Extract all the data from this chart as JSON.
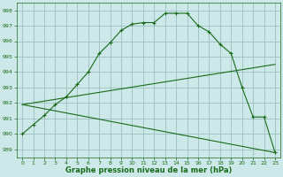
{
  "title": "Graphe pression niveau de la mer (hPa)",
  "bg_color": "#cce8e8",
  "grid_color": "#9bbfbf",
  "line_color": "#1a6b1a",
  "x_ticks": [
    0,
    1,
    2,
    3,
    4,
    5,
    6,
    7,
    8,
    9,
    10,
    11,
    12,
    13,
    14,
    15,
    16,
    17,
    18,
    19,
    20,
    21,
    22,
    23
  ],
  "ylim": [
    988.5,
    998.5
  ],
  "yticks": [
    989,
    990,
    991,
    992,
    993,
    994,
    995,
    996,
    997,
    998
  ],
  "line1_x": [
    0,
    1,
    2,
    3,
    4,
    5,
    6,
    7,
    8,
    9,
    10,
    11,
    12,
    13,
    14,
    15,
    16,
    17,
    18,
    19,
    20,
    21,
    22,
    23
  ],
  "line1_y": [
    990.0,
    990.6,
    991.2,
    991.9,
    992.4,
    993.2,
    994.0,
    995.2,
    995.9,
    996.7,
    997.1,
    997.2,
    997.2,
    997.8,
    997.8,
    997.8,
    997.0,
    996.6,
    995.8,
    995.2,
    993.0,
    991.1,
    991.1,
    988.8
  ],
  "line2_x": [
    0,
    23
  ],
  "line2_y": [
    991.9,
    994.5
  ],
  "line3_x": [
    0,
    23
  ],
  "line3_y": [
    991.9,
    988.8
  ]
}
